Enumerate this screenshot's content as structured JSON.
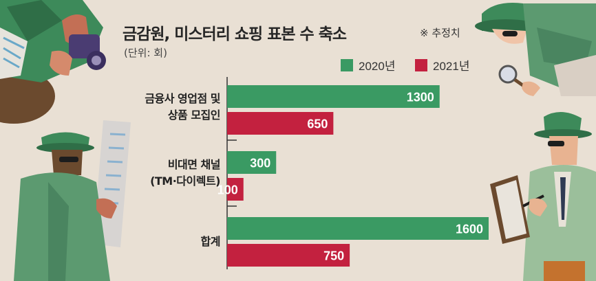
{
  "title": "금감원, 미스터리 쇼핑 표본 수 축소",
  "note": "※ 추정치",
  "unit": "(단위: 회)",
  "colors": {
    "2020년": "#3a9a63",
    "2021년": "#c3213f",
    "background": "#e9e0d4"
  },
  "chart_data": {
    "type": "bar",
    "orientation": "horizontal",
    "categories": [
      [
        "금융사 영업점 및",
        "상품 모집인"
      ],
      [
        "비대면 채널",
        "(TM·다이렉트)"
      ],
      [
        "합계"
      ]
    ],
    "series": [
      {
        "name": "2020년",
        "values": [
          1300,
          300,
          1600
        ]
      },
      {
        "name": "2021년",
        "values": [
          650,
          100,
          750
        ]
      }
    ],
    "xlim": [
      0,
      1600
    ],
    "grid": false,
    "legend": "top-right",
    "value_labels": true
  }
}
